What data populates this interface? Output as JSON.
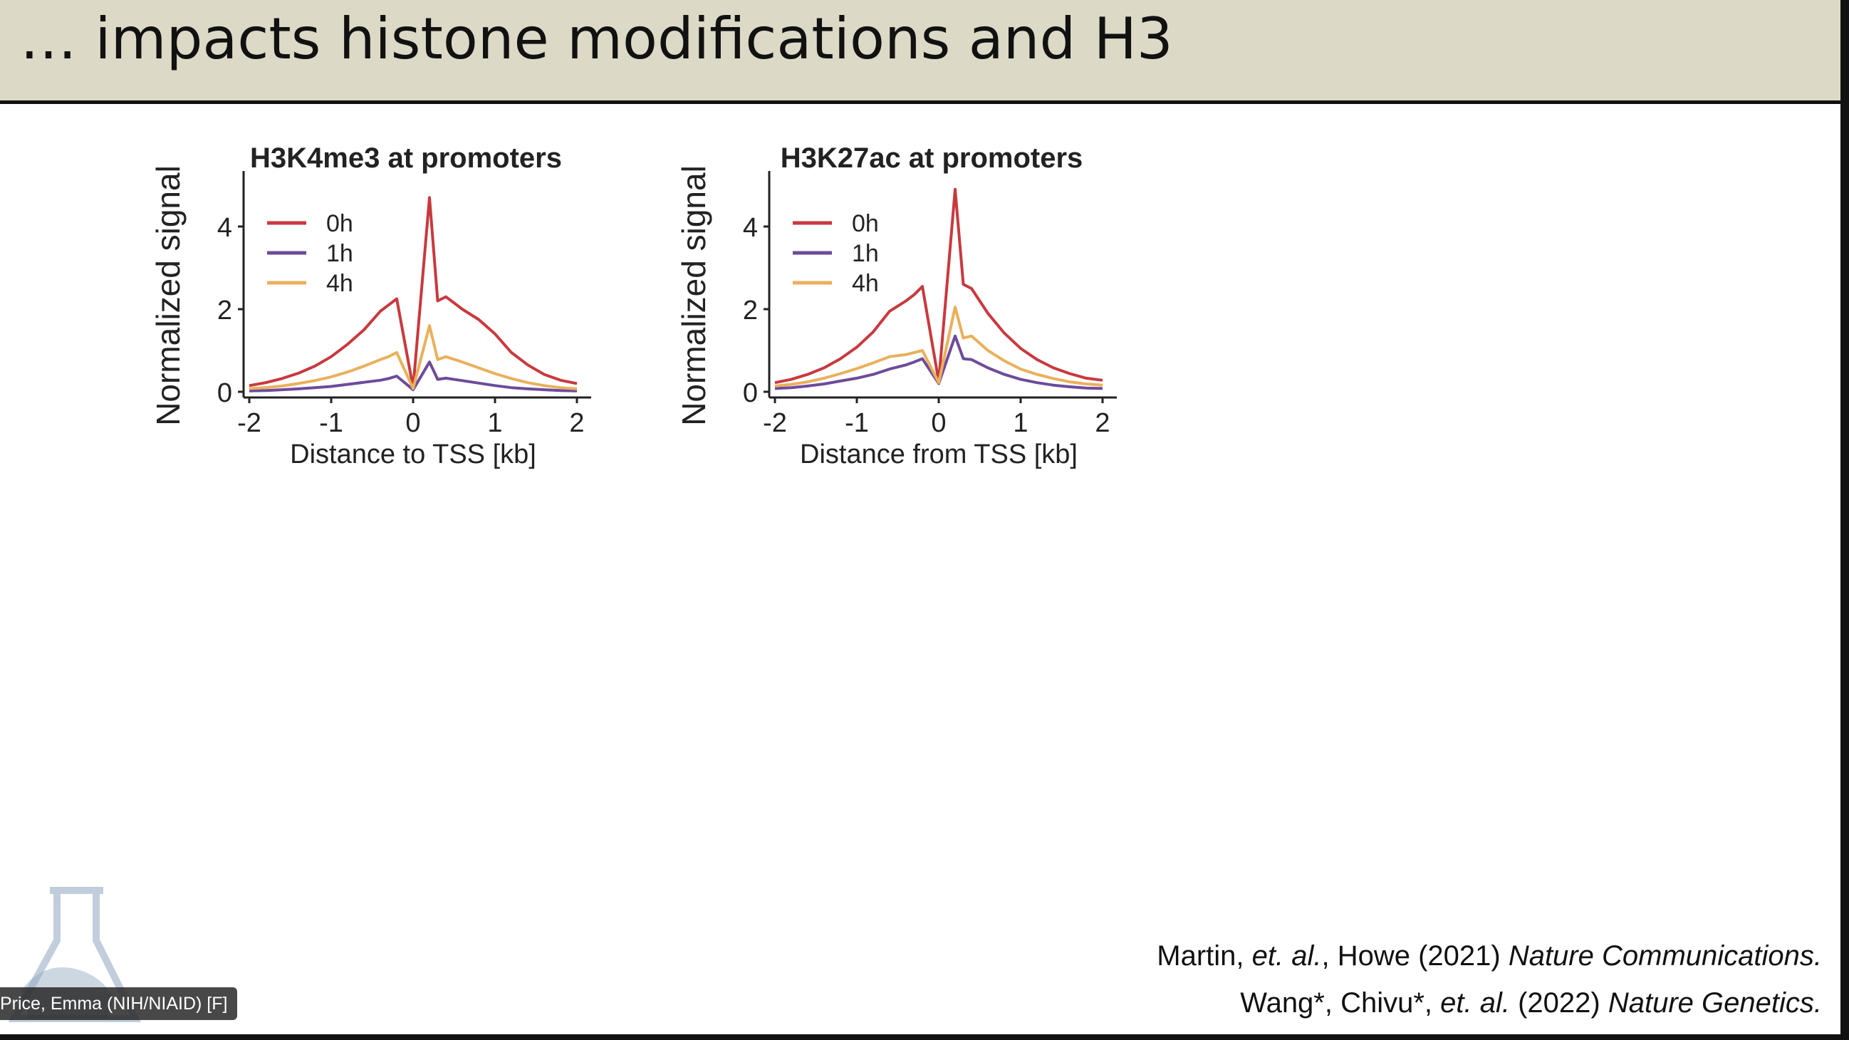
{
  "slide": {
    "title": "… impacts histone modifications and H3"
  },
  "chart_data": [
    {
      "type": "line",
      "title": "H3K4me3 at promoters",
      "xlabel": "Distance to TSS [kb]",
      "ylabel": "Normalized signal",
      "xlim": [
        -2,
        2
      ],
      "ylim": [
        0,
        5
      ],
      "xticks": [
        "-2",
        "-1",
        "0",
        "1",
        "2"
      ],
      "yticks": [
        "0",
        "2",
        "4"
      ],
      "legend": "top-left",
      "grid": false,
      "x": [
        -2,
        -1.8,
        -1.6,
        -1.4,
        -1.2,
        -1,
        -0.8,
        -0.6,
        -0.4,
        -0.3,
        -0.2,
        0,
        0.2,
        0.3,
        0.4,
        0.6,
        0.8,
        1,
        1.2,
        1.4,
        1.6,
        1.8,
        2
      ],
      "series": [
        {
          "name": "0h",
          "color": "#c8393e",
          "values": [
            0.15,
            0.22,
            0.32,
            0.45,
            0.62,
            0.85,
            1.15,
            1.5,
            1.95,
            2.1,
            2.25,
            0.1,
            4.7,
            2.2,
            2.3,
            2.0,
            1.75,
            1.4,
            0.95,
            0.65,
            0.42,
            0.28,
            0.2
          ]
        },
        {
          "name": "1h",
          "color": "#6d4b9b",
          "values": [
            0.02,
            0.03,
            0.05,
            0.07,
            0.1,
            0.13,
            0.18,
            0.23,
            0.28,
            0.32,
            0.38,
            0.05,
            0.72,
            0.3,
            0.33,
            0.27,
            0.21,
            0.15,
            0.1,
            0.07,
            0.05,
            0.03,
            0.02
          ]
        },
        {
          "name": "4h",
          "color": "#eab05c",
          "values": [
            0.08,
            0.1,
            0.14,
            0.2,
            0.27,
            0.36,
            0.48,
            0.62,
            0.78,
            0.85,
            0.95,
            0.08,
            1.6,
            0.78,
            0.85,
            0.72,
            0.58,
            0.44,
            0.32,
            0.22,
            0.15,
            0.1,
            0.07
          ]
        }
      ]
    },
    {
      "type": "line",
      "title": "H3K27ac at promoters",
      "xlabel": "Distance from TSS [kb]",
      "ylabel": "Normalized signal",
      "xlim": [
        -2,
        2
      ],
      "ylim": [
        0,
        5
      ],
      "xticks": [
        "-2",
        "-1",
        "0",
        "1",
        "2"
      ],
      "yticks": [
        "0",
        "2",
        "4"
      ],
      "legend": "top-left",
      "grid": false,
      "x": [
        -2,
        -1.8,
        -1.6,
        -1.4,
        -1.2,
        -1,
        -0.8,
        -0.6,
        -0.4,
        -0.3,
        -0.2,
        0,
        0.2,
        0.3,
        0.4,
        0.6,
        0.8,
        1,
        1.2,
        1.4,
        1.6,
        1.8,
        2
      ],
      "series": [
        {
          "name": "0h",
          "color": "#c8393e",
          "values": [
            0.22,
            0.3,
            0.42,
            0.58,
            0.8,
            1.08,
            1.45,
            1.95,
            2.2,
            2.35,
            2.55,
            0.25,
            4.9,
            2.6,
            2.5,
            1.9,
            1.42,
            1.05,
            0.78,
            0.58,
            0.44,
            0.33,
            0.28
          ]
        },
        {
          "name": "1h",
          "color": "#6d4b9b",
          "values": [
            0.08,
            0.1,
            0.14,
            0.19,
            0.26,
            0.33,
            0.42,
            0.55,
            0.65,
            0.72,
            0.8,
            0.2,
            1.35,
            0.8,
            0.78,
            0.58,
            0.42,
            0.3,
            0.22,
            0.16,
            0.12,
            0.09,
            0.08
          ]
        },
        {
          "name": "4h",
          "color": "#eab05c",
          "values": [
            0.14,
            0.18,
            0.24,
            0.33,
            0.44,
            0.56,
            0.7,
            0.85,
            0.9,
            0.95,
            1.0,
            0.22,
            2.05,
            1.3,
            1.35,
            1.0,
            0.75,
            0.55,
            0.42,
            0.32,
            0.24,
            0.19,
            0.16
          ]
        }
      ]
    }
  ],
  "citations": {
    "line1": {
      "authors": "Martin, ",
      "etal": "et. al.",
      "rest": ", Howe (2021) ",
      "journal": "Nature Communications."
    },
    "line2": {
      "authors": "Wang*, Chivu*, ",
      "etal": "et. al.",
      "rest": " (2022) ",
      "journal": "Nature Genetics."
    }
  },
  "participant": {
    "name": "Price, Emma (NIH/NIAID) [F]"
  }
}
